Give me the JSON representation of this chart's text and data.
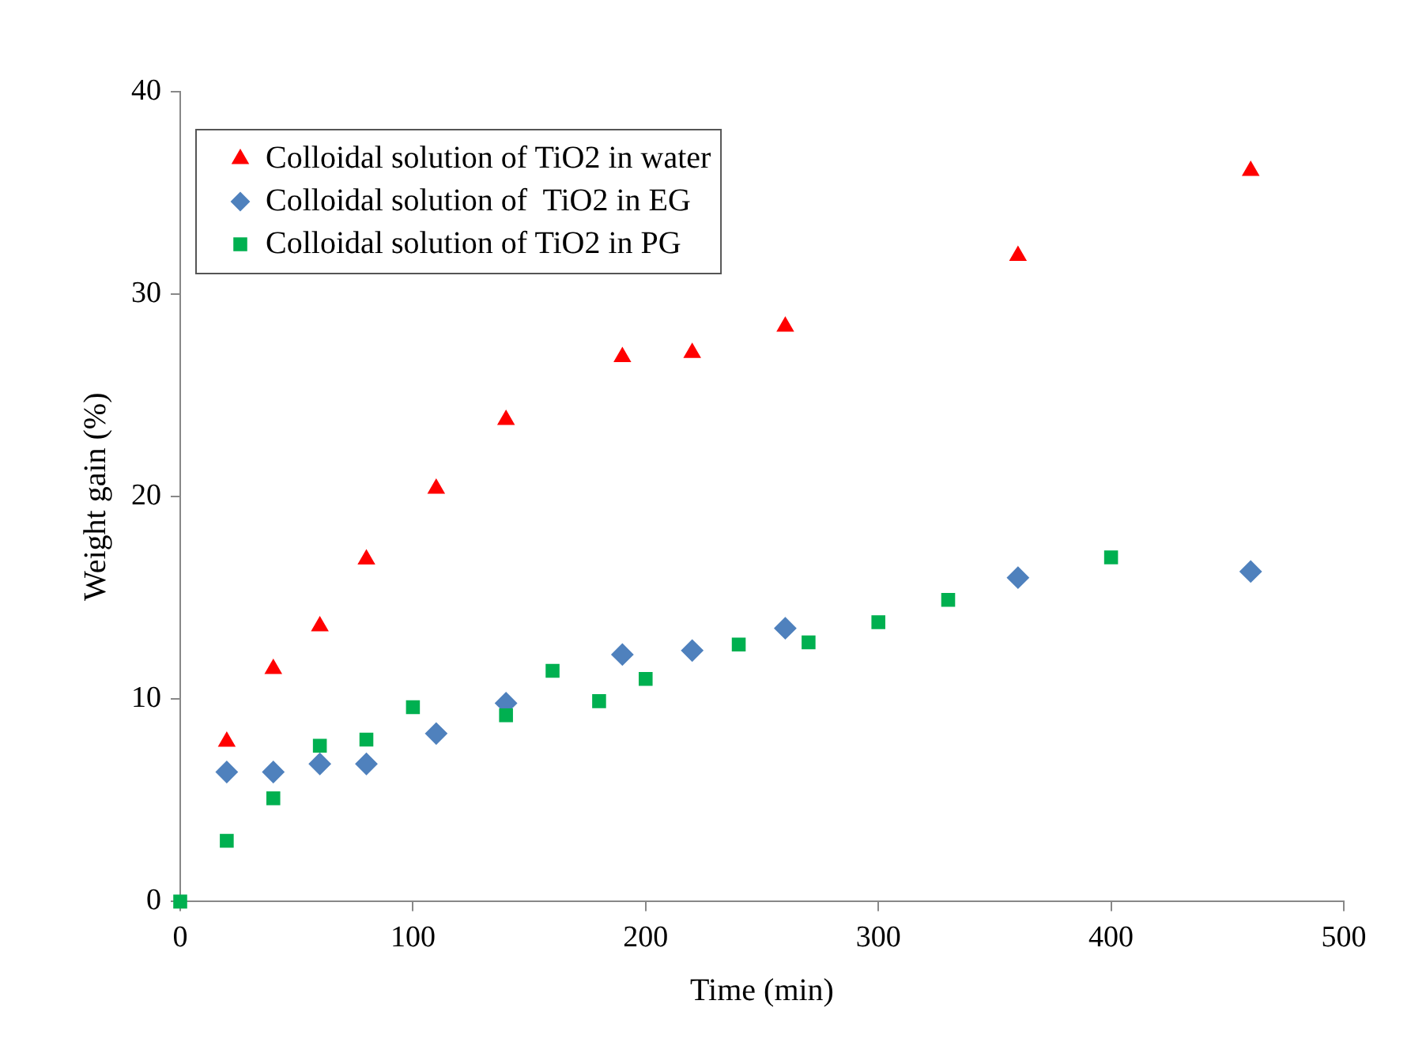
{
  "chart_data": {
    "type": "scatter",
    "xlabel": "Time (min)",
    "ylabel": "Weight gain (%)",
    "xlim": [
      0,
      500
    ],
    "xticks": [
      0,
      100,
      200,
      300,
      400,
      500
    ],
    "ylim": [
      0,
      40
    ],
    "yticks": [
      0,
      10,
      20,
      30,
      40
    ],
    "grid": false,
    "legend": "top left",
    "series": [
      {
        "name": "Colloidal solution of TiO2 in water",
        "color": "#ff0000",
        "marker": "triangle",
        "x": [
          20,
          40,
          60,
          80,
          110,
          140,
          190,
          220,
          260,
          360,
          460
        ],
        "values": [
          7.9,
          11.5,
          13.6,
          16.9,
          20.4,
          23.8,
          26.9,
          27.1,
          28.4,
          31.9,
          36.1
        ]
      },
      {
        "name": "Colloidal solution of  TiO2 in EG",
        "color": "#4f81bd",
        "marker": "diamond",
        "x": [
          20,
          40,
          60,
          80,
          110,
          140,
          190,
          220,
          260,
          360,
          460
        ],
        "values": [
          6.4,
          6.4,
          6.8,
          6.8,
          8.3,
          9.8,
          12.2,
          12.4,
          13.5,
          16.0,
          16.3
        ]
      },
      {
        "name": "Colloidal solution of TiO2 in PG",
        "color": "#00b050",
        "marker": "square",
        "x": [
          0,
          20,
          40,
          60,
          80,
          100,
          140,
          160,
          180,
          200,
          240,
          270,
          300,
          330,
          400
        ],
        "values": [
          0,
          3.0,
          5.1,
          7.7,
          8.0,
          9.6,
          9.2,
          11.4,
          9.9,
          11.0,
          12.7,
          12.8,
          13.8,
          14.9,
          17.0
        ]
      }
    ]
  }
}
